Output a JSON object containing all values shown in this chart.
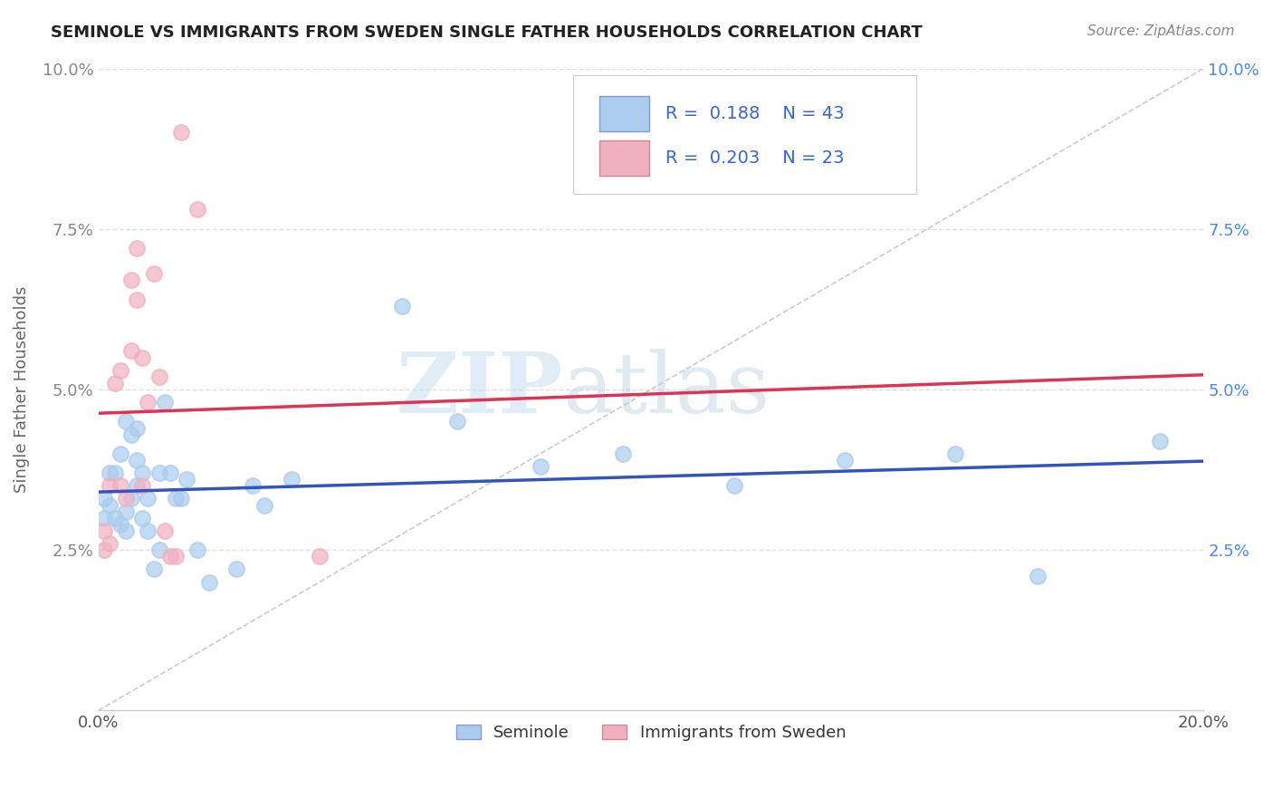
{
  "title": "SEMINOLE VS IMMIGRANTS FROM SWEDEN SINGLE FATHER HOUSEHOLDS CORRELATION CHART",
  "source": "Source: ZipAtlas.com",
  "ylabel": "Single Father Households",
  "xlabel": "",
  "xlim": [
    0,
    0.2
  ],
  "ylim": [
    0,
    0.1
  ],
  "xticks": [
    0.0,
    0.025,
    0.05,
    0.075,
    0.1,
    0.125,
    0.15,
    0.175,
    0.2
  ],
  "xtick_labels": [
    "0.0%",
    "",
    "",
    "",
    "",
    "",
    "",
    "",
    "20.0%"
  ],
  "yticks": [
    0.025,
    0.05,
    0.075,
    0.1
  ],
  "ytick_labels": [
    "2.5%",
    "5.0%",
    "7.5%",
    "10.0%"
  ],
  "watermark_zip": "ZIP",
  "watermark_atlas": "atlas",
  "seminole_x": [
    0.001,
    0.001,
    0.002,
    0.002,
    0.003,
    0.003,
    0.004,
    0.004,
    0.005,
    0.005,
    0.005,
    0.006,
    0.006,
    0.007,
    0.007,
    0.007,
    0.008,
    0.008,
    0.009,
    0.009,
    0.01,
    0.011,
    0.011,
    0.012,
    0.013,
    0.014,
    0.015,
    0.016,
    0.018,
    0.02,
    0.025,
    0.028,
    0.03,
    0.035,
    0.055,
    0.065,
    0.08,
    0.095,
    0.115,
    0.135,
    0.155,
    0.17,
    0.192
  ],
  "seminole_y": [
    0.03,
    0.033,
    0.032,
    0.037,
    0.03,
    0.037,
    0.029,
    0.04,
    0.028,
    0.031,
    0.045,
    0.033,
    0.043,
    0.035,
    0.039,
    0.044,
    0.03,
    0.037,
    0.028,
    0.033,
    0.022,
    0.025,
    0.037,
    0.048,
    0.037,
    0.033,
    0.033,
    0.036,
    0.025,
    0.02,
    0.022,
    0.035,
    0.032,
    0.036,
    0.063,
    0.045,
    0.038,
    0.04,
    0.035,
    0.039,
    0.04,
    0.021,
    0.042
  ],
  "sweden_x": [
    0.001,
    0.001,
    0.002,
    0.002,
    0.003,
    0.004,
    0.004,
    0.005,
    0.006,
    0.006,
    0.007,
    0.007,
    0.008,
    0.008,
    0.009,
    0.01,
    0.011,
    0.012,
    0.013,
    0.014,
    0.015,
    0.018,
    0.04
  ],
  "sweden_y": [
    0.025,
    0.028,
    0.026,
    0.035,
    0.051,
    0.035,
    0.053,
    0.033,
    0.056,
    0.067,
    0.064,
    0.072,
    0.055,
    0.035,
    0.048,
    0.068,
    0.052,
    0.028,
    0.024,
    0.024,
    0.09,
    0.078,
    0.024
  ],
  "seminole_color": "#aaccee",
  "sweden_color": "#f0b0c0",
  "seminole_line_color": "#3355bb",
  "sweden_line_color": "#dd3355",
  "diagonal_color": "#cccccc",
  "grid_color": "#e0e0e0",
  "seminole_R": 0.188,
  "seminole_N": 43,
  "sweden_R": 0.203,
  "sweden_N": 23
}
